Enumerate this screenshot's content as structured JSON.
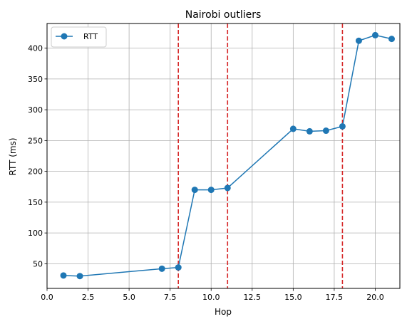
{
  "chart_data": {
    "type": "line",
    "title": "Nairobi outliers",
    "xlabel": "Hop",
    "ylabel": "RTT (ms)",
    "xlim": [
      0,
      21.5
    ],
    "ylim": [
      10,
      440
    ],
    "xticks": [
      0.0,
      2.5,
      5.0,
      7.5,
      10.0,
      12.5,
      15.0,
      17.5,
      20.0
    ],
    "xtick_labels": [
      "0.0",
      "2.5",
      "5.0",
      "7.5",
      "10.0",
      "12.5",
      "15.0",
      "17.5",
      "20.0"
    ],
    "yticks": [
      50,
      100,
      150,
      200,
      250,
      300,
      350,
      400
    ],
    "ytick_labels": [
      "50",
      "100",
      "150",
      "200",
      "250",
      "300",
      "350",
      "400"
    ],
    "grid": true,
    "legend_position": "top-left",
    "series": [
      {
        "name": "RTT",
        "color": "#1f77b4",
        "x": [
          1,
          2,
          7,
          8,
          9,
          10,
          11,
          15,
          16,
          17,
          18,
          19,
          20,
          21
        ],
        "y": [
          31,
          30,
          42,
          44,
          170,
          170,
          173,
          269,
          265,
          266,
          273,
          412,
          421,
          415
        ]
      }
    ],
    "vlines": {
      "x": [
        8,
        11,
        18
      ],
      "color": "#d62728",
      "style": "dashed"
    }
  }
}
